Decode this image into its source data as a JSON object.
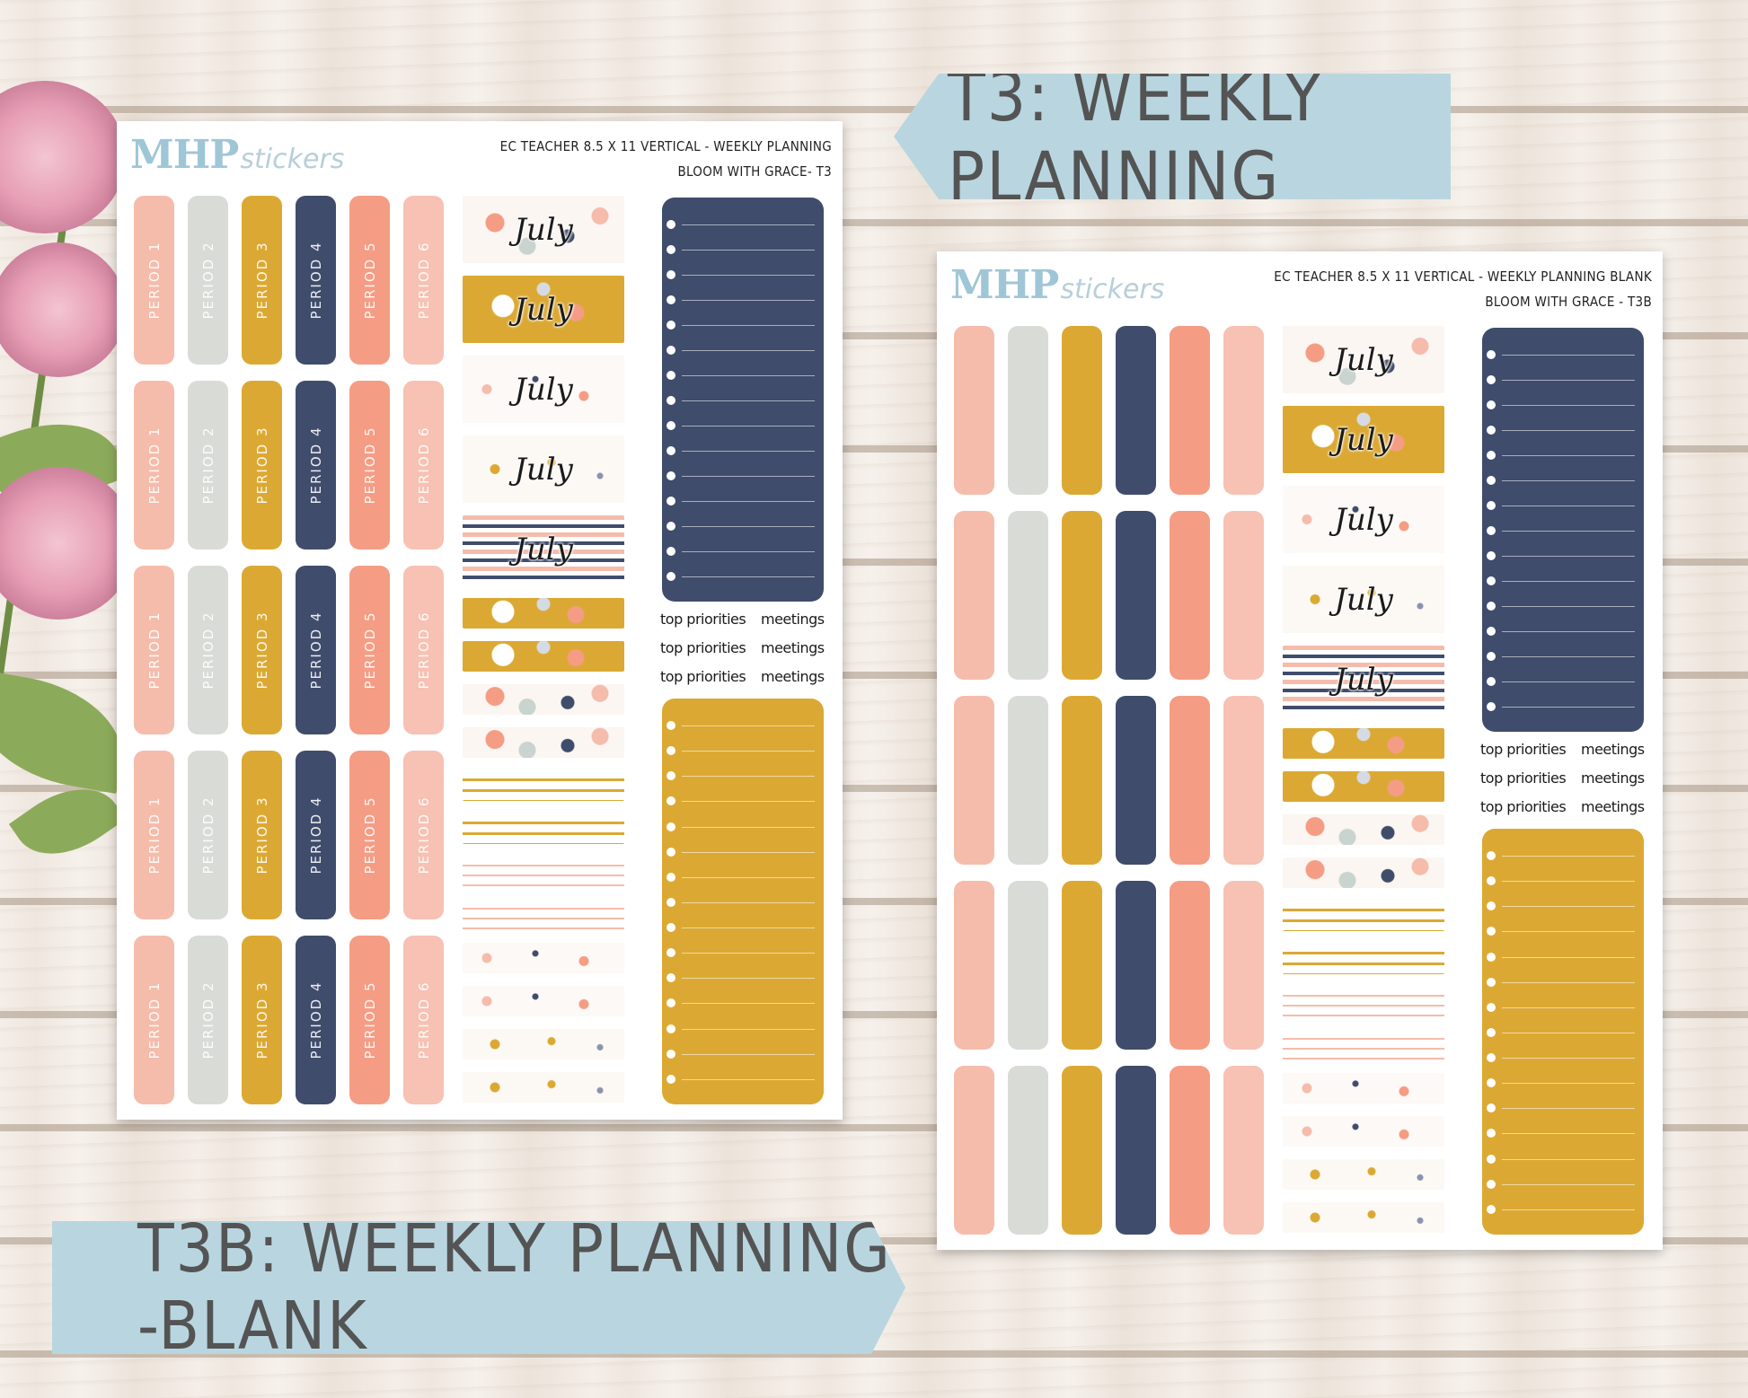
{
  "colors": {
    "pink": "#f5bcab",
    "gray": "#d9dbd7",
    "mustard": "#dba933",
    "navy": "#3f4c6b",
    "coral": "#f59c84",
    "blush": "#f7c1b3",
    "banner": "#b9d6e0"
  },
  "banners": {
    "top": "T3: WEEKLY PLANNING",
    "bottom": "T3B: WEEKLY PLANNING -BLANK"
  },
  "sheet1": {
    "logo_main": "MHP",
    "logo_sub": "stickers",
    "header_line1": "EC TEACHER 8.5 X 11 VERTICAL - WEEKLY PLANNING",
    "header_line2": "BLOOM WITH GRACE- T3",
    "period_labels": [
      "PERIOD 1",
      "PERIOD 2",
      "PERIOD 3",
      "PERIOD 4",
      "PERIOD 5",
      "PERIOD 6"
    ],
    "month": "July",
    "top_priorities": "top priorities",
    "meetings": "meetings"
  },
  "sheet2": {
    "logo_main": "MHP",
    "logo_sub": "stickers",
    "header_line1": "EC TEACHER 8.5 X 11 VERTICAL - WEEKLY PLANNING BLANK",
    "header_line2": "BLOOM WITH GRACE - T3B",
    "month": "July",
    "top_priorities": "top priorities",
    "meetings": "meetings"
  }
}
